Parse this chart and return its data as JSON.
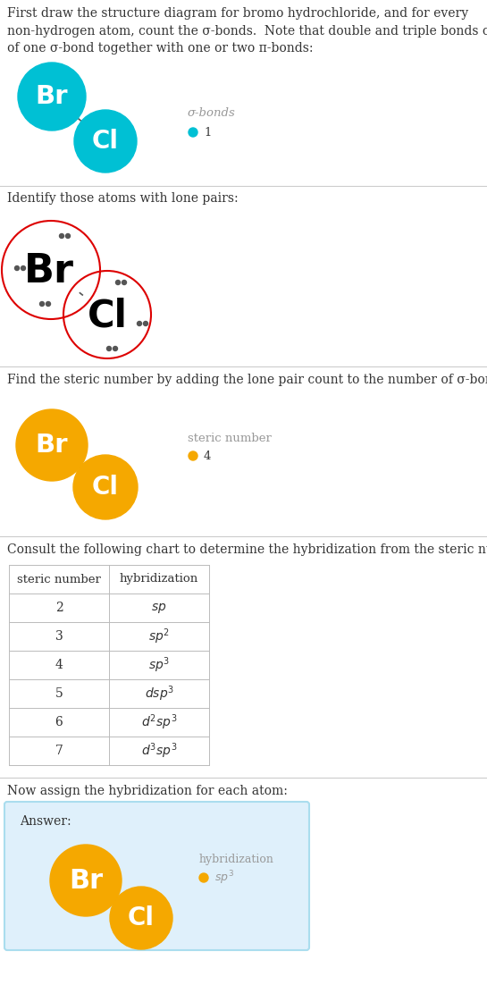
{
  "section1_text": "First draw the structure diagram for bromo hydrochloride, and for every\nnon-hydrogen atom, count the σ-bonds.  Note that double and triple bonds consist\nof one σ-bond together with one or two π-bonds:",
  "section2_text": "Identify those atoms with lone pairs:",
  "section3_text": "Find the steric number by adding the lone pair count to the number of σ-bonds:",
  "section4_text": "Consult the following chart to determine the hybridization from the steric number:",
  "section5_text": "Now assign the hybridization for each atom:",
  "br_color_1": "#00C0D4",
  "cl_color_1": "#00C0D4",
  "br_color_3": "#F5A800",
  "cl_color_3": "#F5A800",
  "br_color_5": "#F5A800",
  "cl_color_5": "#F5A800",
  "sigma_bonds_label": "σ-bonds",
  "sigma_bonds_value": "1",
  "sigma_dot_color": "#00C0D4",
  "steric_label": "steric number",
  "steric_value": "4",
  "steric_dot_color": "#F5A800",
  "hybridization_label": "hybridization",
  "hybridization_dot_color": "#F5A800",
  "hybridization_value": "sp³",
  "table_steric": [
    2,
    3,
    4,
    5,
    6,
    7
  ],
  "table_hybrid": [
    "sp",
    "sp^2",
    "sp^3",
    "dsp^3",
    "d^2sp^3",
    "d^3sp^3"
  ],
  "answer_bg": "#DFF0FB",
  "red_circle_color": "#DD0000",
  "text_color": "#333333",
  "label_color": "#999999",
  "line_color": "#CCCCCC",
  "bond_color": "#555555",
  "lp_dot_color": "#555555"
}
